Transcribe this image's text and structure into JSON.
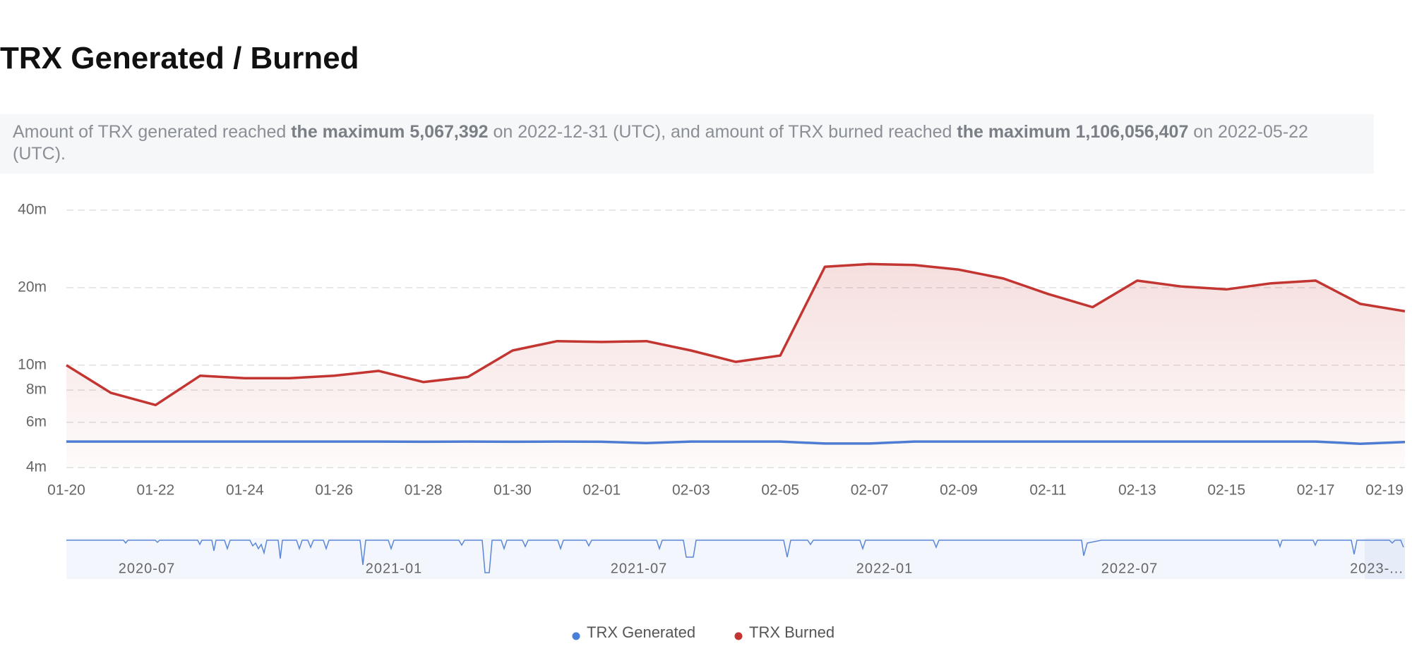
{
  "chart_data": {
    "type": "line",
    "title": "TRX Generated / Burned",
    "description": [
      "Amount of TRX generated reached ",
      "the maximum 5,067,392",
      " on 2022-12-31 (UTC), and amount of TRX burned reached ",
      "the maximum 1,106,056,407",
      " on 2022-05-22 (UTC)."
    ],
    "categories": [
      "01-20",
      null,
      "01-22",
      null,
      "01-24",
      null,
      "01-26",
      null,
      "01-28",
      null,
      "01-30",
      null,
      "02-01",
      null,
      "02-03",
      null,
      "02-05",
      null,
      "02-07",
      null,
      "02-09",
      null,
      "02-11",
      null,
      "02-13",
      null,
      "02-15",
      null,
      "02-17",
      null,
      "02-19"
    ],
    "series": [
      {
        "name": "TRX Generated",
        "color": "#4a7fd8",
        "values": [
          5050000,
          5050000,
          5050000,
          5050000,
          5050000,
          5050000,
          5050000,
          5050000,
          5040000,
          5050000,
          5040000,
          5050000,
          5040000,
          4980000,
          5050000,
          5050000,
          5050000,
          4960000,
          4960000,
          5050000,
          5050000,
          5050000,
          5050000,
          5050000,
          5050000,
          5050000,
          5050000,
          5050000,
          5050000,
          4950000,
          5030000
        ]
      },
      {
        "name": "TRX Burned",
        "color": "#c23531",
        "values": [
          10000000,
          7800000,
          7000000,
          9100000,
          8900000,
          8900000,
          9100000,
          9500000,
          8600000,
          9000000,
          11400000,
          12400000,
          12300000,
          12400000,
          11400000,
          10300000,
          10900000,
          24100000,
          24700000,
          24500000,
          23500000,
          21700000,
          18900000,
          16800000,
          21300000,
          20200000,
          19700000,
          20800000,
          21300000,
          17300000,
          16200000
        ]
      }
    ],
    "log_scale": true,
    "ylim": [
      4000000,
      40000000
    ],
    "yticks": [
      {
        "value": 4000000,
        "label": "4m"
      },
      {
        "value": 6000000,
        "label": "6m"
      },
      {
        "value": 8000000,
        "label": "8m"
      },
      {
        "value": 10000000,
        "label": "10m"
      },
      {
        "value": 20000000,
        "label": "20m"
      },
      {
        "value": 40000000,
        "label": "40m"
      }
    ],
    "grid": true,
    "navigator_labels": [
      "2020-07",
      "2021-01",
      "2021-07",
      "2022-01",
      "2022-07",
      "2023-..."
    ],
    "legend": "bottom"
  }
}
